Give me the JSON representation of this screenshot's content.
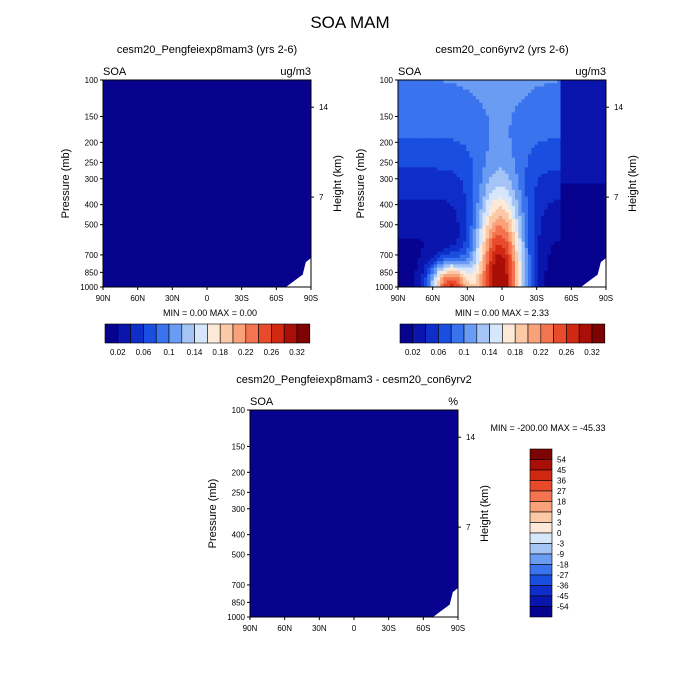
{
  "figure_title": "SOA MAM",
  "palette": {
    "c0": "#07038f",
    "c1": "#0a15ad",
    "c2": "#0f2ec9",
    "c3": "#1a4ee0",
    "c4": "#3a73ee",
    "c5": "#6a9cf3",
    "c6": "#a4c4f5",
    "c7": "#d6e6fb",
    "c8": "#fde9d8",
    "c9": "#fcc9a6",
    "c10": "#f9a27a",
    "c11": "#f3744f",
    "c12": "#e84a2c",
    "c13": "#d02811",
    "c14": "#a90e07",
    "c15": "#7e0303",
    "white": "#ffffff"
  },
  "chart_data": [
    {
      "type": "heatmap",
      "id": "panel1",
      "title": "cesm20_Pengfeiexp8mam3 (yrs 2-6)",
      "left_label": "SOA",
      "right_label": "ug/m3",
      "ylabel": "Pressure (mb)",
      "y2label": "Height (km)",
      "x_ticks": [
        "90N",
        "60N",
        "30N",
        "0",
        "30S",
        "60S",
        "90S"
      ],
      "y_ticks": [
        "100",
        "150",
        "200",
        "250",
        "300",
        "400",
        "500",
        "700",
        "850",
        "1000"
      ],
      "y_tick_values": [
        100,
        150,
        200,
        250,
        300,
        400,
        500,
        700,
        850,
        1000
      ],
      "y2_ticks": [
        "14",
        "7"
      ],
      "y2_tick_values": [
        14,
        7
      ],
      "xlim": [
        90,
        -90
      ],
      "ylim": [
        1000,
        100
      ],
      "min_max_text": "MIN =   0.00   MAX =   0.00",
      "min": 0.0,
      "max": 0.0,
      "field": "uniform-min"
    },
    {
      "type": "heatmap",
      "id": "panel2",
      "title": "cesm20_con6yrv2 (yrs 2-6)",
      "left_label": "SOA",
      "right_label": "ug/m3",
      "ylabel": "Pressure (mb)",
      "y2label": "Height (km)",
      "x_ticks": [
        "90N",
        "60N",
        "30N",
        "0",
        "30S",
        "60S",
        "90S"
      ],
      "y_ticks": [
        "100",
        "150",
        "200",
        "250",
        "300",
        "400",
        "500",
        "700",
        "850",
        "1000"
      ],
      "y_tick_values": [
        100,
        150,
        200,
        250,
        300,
        400,
        500,
        700,
        850,
        1000
      ],
      "y2_ticks": [
        "14",
        "7"
      ],
      "y2_tick_values": [
        14,
        7
      ],
      "xlim": [
        90,
        -90
      ],
      "ylim": [
        1000,
        100
      ],
      "min_max_text": "MIN =   0.00   MAX =   2.33",
      "min": 0.0,
      "max": 2.33,
      "field": "tropical-plume"
    },
    {
      "type": "heatmap",
      "id": "panel3",
      "title": "cesm20_Pengfeiexp8mam3 - cesm20_con6yrv2",
      "left_label": "SOA",
      "right_label": "%",
      "ylabel": "Pressure (mb)",
      "y2label": "Height (km)",
      "x_ticks": [
        "90N",
        "60N",
        "30N",
        "0",
        "30S",
        "60S",
        "90S"
      ],
      "y_ticks": [
        "100",
        "150",
        "200",
        "250",
        "300",
        "400",
        "500",
        "700",
        "850",
        "1000"
      ],
      "y_tick_values": [
        100,
        150,
        200,
        250,
        300,
        400,
        500,
        700,
        850,
        1000
      ],
      "y2_ticks": [
        "14",
        "7"
      ],
      "y2_tick_values": [
        14,
        7
      ],
      "xlim": [
        90,
        -90
      ],
      "ylim": [
        1000,
        100
      ],
      "min_max_text": "MIN = -200.00   MAX = -45.33",
      "min": -200.0,
      "max": -45.33,
      "field": "uniform-min"
    }
  ],
  "colorbar_horizontal": {
    "labels": [
      "0.02",
      "0.06",
      "0.1",
      "0.14",
      "0.18",
      "0.22",
      "0.26",
      "0.32"
    ],
    "levels": [
      0.02,
      0.04,
      0.06,
      0.08,
      0.1,
      0.12,
      0.14,
      0.16,
      0.18,
      0.2,
      0.22,
      0.24,
      0.26,
      0.28,
      0.32
    ]
  },
  "colorbar_vertical": {
    "labels": [
      "54",
      "45",
      "36",
      "27",
      "18",
      "9",
      "3",
      "0",
      "-3",
      "-9",
      "-18",
      "-27",
      "-36",
      "-45",
      "-54"
    ],
    "levels": [
      54,
      45,
      36,
      27,
      18,
      9,
      3,
      0,
      -3,
      -9,
      -18,
      -27,
      -36,
      -45,
      -54
    ]
  }
}
